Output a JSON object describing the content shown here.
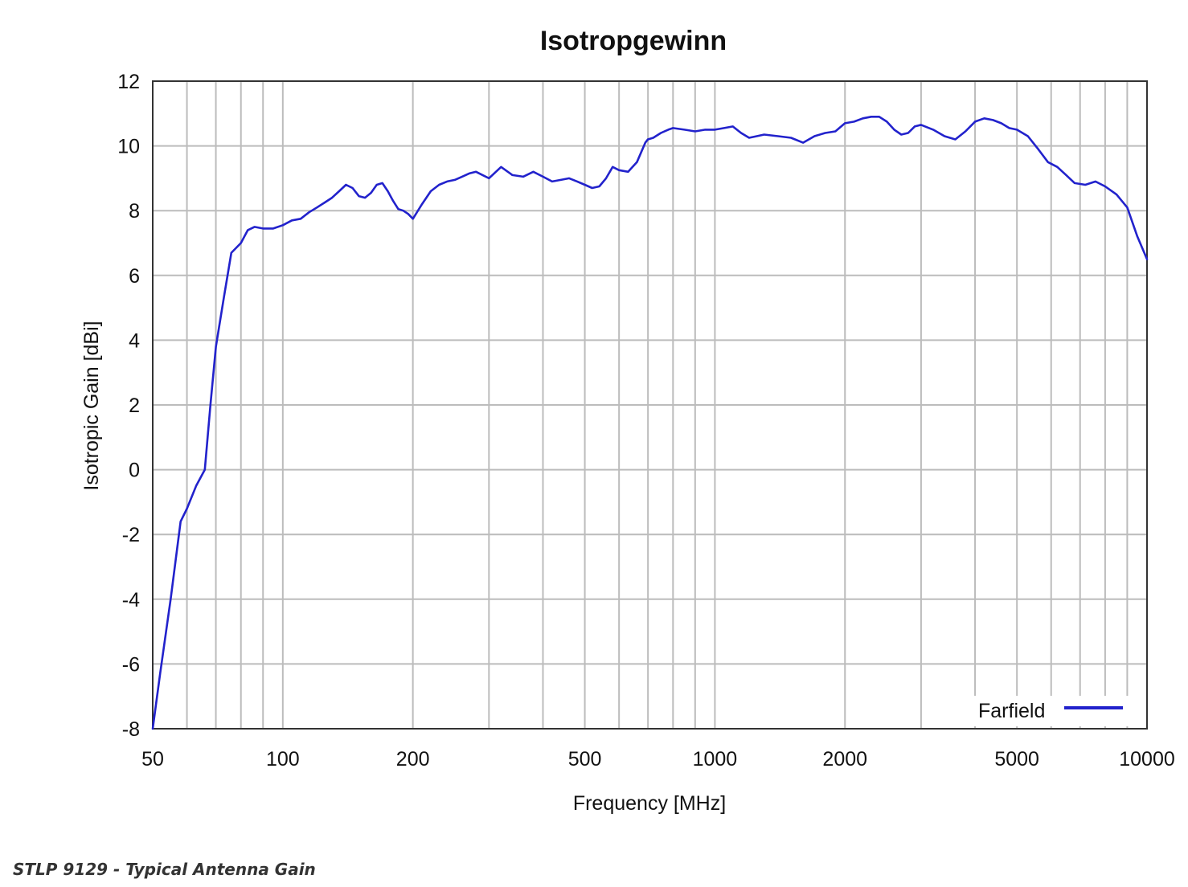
{
  "chart_data": {
    "type": "line",
    "title": "Isotropgewinn",
    "xlabel": "Frequency [MHz]",
    "ylabel": "Isotropic Gain [dBi]",
    "xscale": "log",
    "xlim": [
      50,
      10000
    ],
    "ylim": [
      -8,
      12
    ],
    "xticks": [
      50,
      100,
      200,
      500,
      1000,
      2000,
      5000,
      10000
    ],
    "xtick_labels": [
      "50",
      "100",
      "200",
      "500",
      "1000",
      "2000",
      "5000",
      "10000"
    ],
    "yticks": [
      -8,
      -6,
      -4,
      -2,
      0,
      2,
      4,
      6,
      8,
      10,
      12
    ],
    "ytick_labels": [
      "-8",
      "-6",
      "-4",
      "-2",
      "0",
      "2",
      "4",
      "6",
      "8",
      "10",
      "12"
    ],
    "grid": true,
    "legend_position": "bottom-right",
    "series": [
      {
        "name": "Farfield",
        "color": "#2222cc",
        "x": [
          50,
          52,
          55,
          58,
          60,
          63,
          66,
          68,
          70,
          73,
          76,
          80,
          83,
          86,
          90,
          95,
          100,
          105,
          110,
          115,
          120,
          125,
          130,
          135,
          140,
          145,
          150,
          155,
          160,
          165,
          170,
          175,
          180,
          185,
          190,
          195,
          200,
          210,
          220,
          230,
          240,
          250,
          260,
          270,
          280,
          290,
          300,
          320,
          340,
          360,
          380,
          400,
          420,
          440,
          460,
          480,
          500,
          520,
          540,
          560,
          580,
          600,
          630,
          660,
          690,
          700,
          720,
          750,
          780,
          800,
          850,
          900,
          950,
          1000,
          1050,
          1100,
          1150,
          1200,
          1250,
          1300,
          1400,
          1500,
          1600,
          1700,
          1800,
          1900,
          2000,
          2100,
          2200,
          2300,
          2400,
          2500,
          2600,
          2700,
          2800,
          2900,
          3000,
          3200,
          3400,
          3600,
          3800,
          4000,
          4200,
          4400,
          4600,
          4800,
          5000,
          5300,
          5600,
          5900,
          6200,
          6500,
          6800,
          7200,
          7600,
          8000,
          8500,
          9000,
          9500,
          10000
        ],
        "y": [
          -8,
          -6.3,
          -4,
          -1.6,
          -1.2,
          -0.5,
          0,
          2,
          3.8,
          5.3,
          6.7,
          7,
          7.4,
          7.5,
          7.45,
          7.45,
          7.55,
          7.7,
          7.75,
          7.95,
          8.1,
          8.25,
          8.4,
          8.6,
          8.8,
          8.7,
          8.45,
          8.4,
          8.55,
          8.8,
          8.85,
          8.6,
          8.3,
          8.05,
          8.0,
          7.9,
          7.75,
          8.2,
          8.6,
          8.8,
          8.9,
          8.95,
          9.05,
          9.15,
          9.2,
          9.1,
          9.0,
          9.35,
          9.1,
          9.05,
          9.2,
          9.05,
          8.9,
          8.95,
          9.0,
          8.9,
          8.8,
          8.7,
          8.75,
          9.0,
          9.35,
          9.25,
          9.2,
          9.5,
          10.1,
          10.2,
          10.25,
          10.4,
          10.5,
          10.55,
          10.5,
          10.45,
          10.5,
          10.5,
          10.55,
          10.6,
          10.4,
          10.25,
          10.3,
          10.35,
          10.3,
          10.25,
          10.1,
          10.3,
          10.4,
          10.45,
          10.7,
          10.75,
          10.85,
          10.9,
          10.9,
          10.75,
          10.5,
          10.35,
          10.4,
          10.6,
          10.65,
          10.5,
          10.3,
          10.2,
          10.45,
          10.75,
          10.85,
          10.8,
          10.7,
          10.55,
          10.5,
          10.3,
          9.9,
          9.5,
          9.35,
          9.1,
          8.85,
          8.8,
          8.9,
          8.75,
          8.5,
          8.1,
          7.2,
          6.5
        ]
      }
    ]
  },
  "caption": "STLP 9129 - Typical Antenna Gain"
}
